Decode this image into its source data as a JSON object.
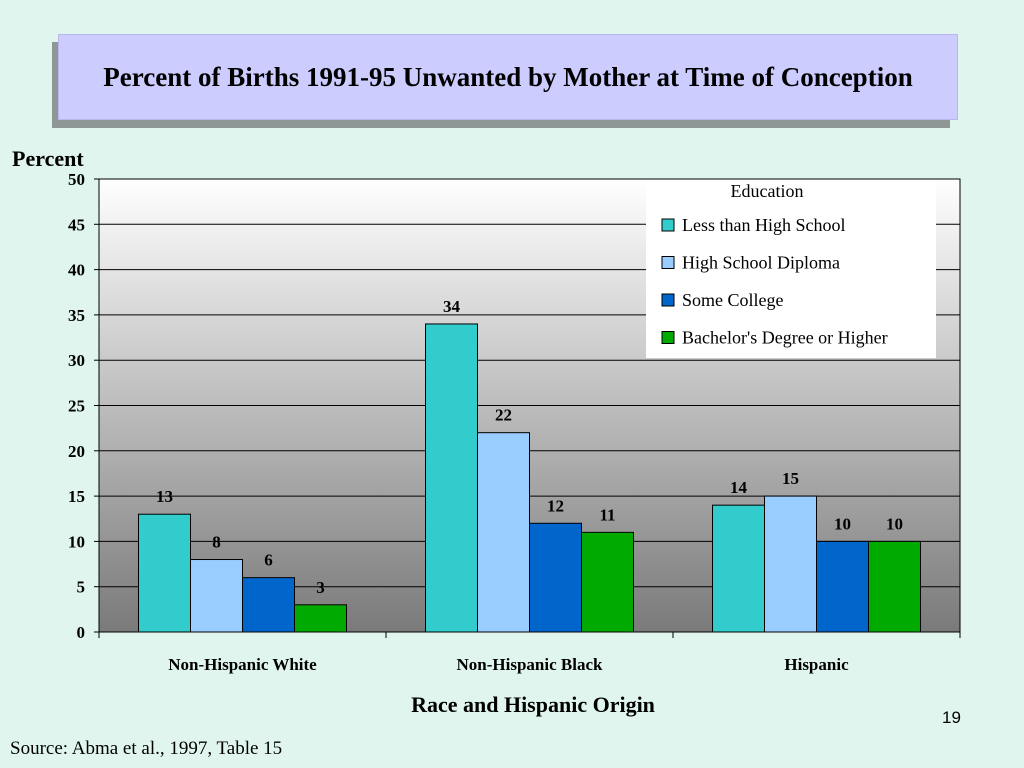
{
  "slide": {
    "title": "Percent of Births 1991-95 Unwanted by Mother at Time of Conception",
    "source": "Source: Abma et al., 1997, Table 15",
    "page_number": "19"
  },
  "chart_data": {
    "type": "bar",
    "title": "Percent of Births 1991-95 Unwanted by Mother at Time of Conception",
    "xlabel": "Race and Hispanic Origin",
    "ylabel": "Percent",
    "ylim": [
      0,
      50
    ],
    "yticks": [
      0,
      5,
      10,
      15,
      20,
      25,
      30,
      35,
      40,
      45,
      50
    ],
    "grid": true,
    "legend_title": "Education",
    "legend_position": "top-right",
    "categories": [
      "Non-Hispanic White",
      "Non-Hispanic Black",
      "Hispanic"
    ],
    "series": [
      {
        "name": "Less than High School",
        "color": "#33cccc",
        "values": [
          13,
          34,
          14
        ]
      },
      {
        "name": "High School Diploma",
        "color": "#99ccff",
        "values": [
          8,
          22,
          15
        ]
      },
      {
        "name": "Some College",
        "color": "#0066cc",
        "values": [
          6,
          12,
          10
        ]
      },
      {
        "name": "Bachelor's Degree or Higher",
        "color": "#00aa00",
        "values": [
          3,
          11,
          10
        ]
      }
    ]
  }
}
